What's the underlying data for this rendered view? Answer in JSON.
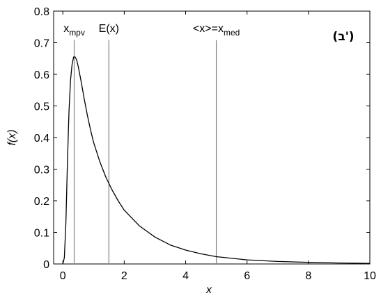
{
  "chart_data": {
    "type": "line",
    "xlabel": "x",
    "ylabel": "f(x)",
    "xlim": [
      -0.3,
      10
    ],
    "ylim": [
      0,
      0.8
    ],
    "xticks": [
      0,
      2,
      4,
      6,
      8,
      10
    ],
    "yticks": [
      0,
      0.1,
      0.2,
      0.3,
      0.4,
      0.5,
      0.6,
      0.7,
      0.8
    ],
    "xtick_labels": [
      "0",
      "2",
      "4",
      "6",
      "8",
      "10"
    ],
    "ytick_labels": [
      "0",
      "0.1",
      "0.2",
      "0.3",
      "0.4",
      "0.5",
      "0.6",
      "0.7",
      "0.8"
    ],
    "grid": false,
    "panel_label": "(ב')",
    "series": [
      {
        "x": [
          0,
          0.05,
          0.1,
          0.15,
          0.2,
          0.25,
          0.3,
          0.35,
          0.4,
          0.45,
          0.5,
          0.6,
          0.7,
          0.8,
          0.9,
          1.0,
          1.2,
          1.4,
          1.6,
          1.8,
          2.0,
          2.5,
          3.0,
          3.5,
          4.0,
          4.5,
          5.0,
          6.0,
          7.0,
          8.0,
          9.0,
          10.0
        ],
        "y": [
          0.0,
          0.02,
          0.13,
          0.32,
          0.48,
          0.58,
          0.63,
          0.655,
          0.655,
          0.645,
          0.625,
          0.575,
          0.52,
          0.47,
          0.425,
          0.385,
          0.325,
          0.275,
          0.235,
          0.2,
          0.17,
          0.12,
          0.085,
          0.06,
          0.044,
          0.032,
          0.023,
          0.013,
          0.008,
          0.005,
          0.003,
          0.002
        ]
      }
    ],
    "markers": [
      {
        "x": 0.37,
        "label": "x",
        "sub": "mpv"
      },
      {
        "x": 1.5,
        "label": "E(x)",
        "sub": ""
      },
      {
        "x": 5.0,
        "label": "<x>=x",
        "sub": "med"
      }
    ]
  }
}
